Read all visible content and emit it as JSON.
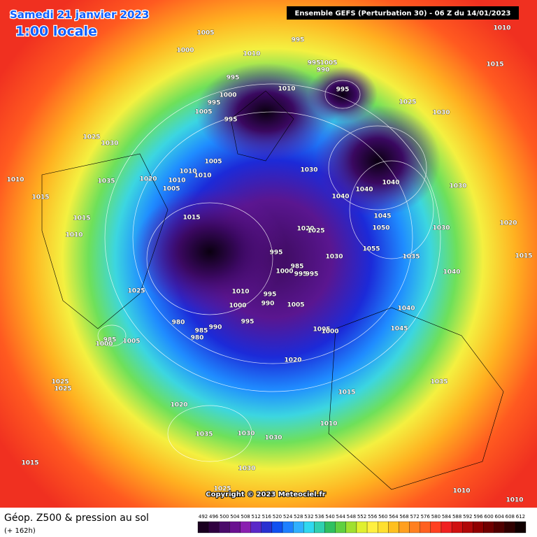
{
  "header": {
    "date": "Samedi 21 janvier 2023",
    "time": "1:00 locale",
    "run": "Ensemble GEFS  (Perturbation 30)  -  06 Z du 14/01/2023"
  },
  "copyright": "Copyright © 2023 Meteociel.fr",
  "footer": {
    "title": "Géop. Z500 & pression au sol",
    "lead": "(+ 162h)"
  },
  "colorbar": {
    "labels": [
      492,
      496,
      500,
      504,
      508,
      512,
      516,
      520,
      524,
      528,
      532,
      536,
      540,
      544,
      548,
      552,
      556,
      560,
      564,
      568,
      572,
      576,
      580,
      584,
      588,
      592,
      596,
      600,
      604,
      608,
      612
    ]
  },
  "isobar_labels": [
    1010,
    1015,
    1005,
    995,
    1000,
    1010,
    995,
    1005,
    990,
    995,
    1010,
    995,
    1000,
    995,
    1005,
    995,
    1025,
    1030,
    1025,
    1030,
    1005,
    1010,
    1030,
    1010,
    1020,
    1035,
    1010,
    1010,
    1040,
    1005,
    1040,
    1030,
    1015,
    1040,
    1045,
    1015,
    1015,
    1020,
    1050,
    1030,
    1020,
    1025,
    1010,
    1055,
    995,
    1035,
    1015,
    1030,
    985,
    1000,
    995,
    995,
    1040,
    1025,
    1010,
    995,
    990,
    1000,
    1005,
    1040,
    995,
    980,
    990,
    1045,
    1005,
    1000,
    985,
    980,
    985,
    1005,
    1000,
    1020,
    1035,
    1025,
    1025,
    1015,
    1020,
    1010,
    1035,
    1030,
    1030,
    1015,
    1030,
    1025,
    1010,
    1010
  ]
}
